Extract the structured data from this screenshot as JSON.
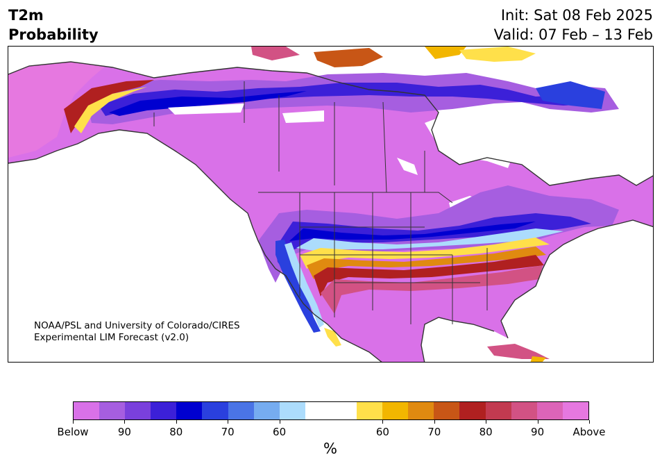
{
  "header": {
    "title_line1": "T2m",
    "title_line2": "Probability",
    "init": "Init: Sat 08 Feb 2025",
    "valid": "Valid: 07 Feb – 13 Feb"
  },
  "credit": {
    "line1": "NOAA/PSL and University of Colorado/CIRES",
    "line2": "Experimental LIM Forecast (v2.0)"
  },
  "colorbar": {
    "colors": [
      "#d971e8",
      "#a65ee0",
      "#7a40dc",
      "#3c20d8",
      "#0000d0",
      "#2a40de",
      "#4a74e6",
      "#76acf0",
      "#acdcfc",
      "#ffffff",
      "#ffe04a",
      "#f2b600",
      "#e08a10",
      "#c85616",
      "#b02020",
      "#c23a50",
      "#d25284",
      "#dc64b8",
      "#e678e0"
    ],
    "tick_labels": [
      "Below",
      "90",
      "80",
      "70",
      "60",
      "60",
      "70",
      "80",
      "90",
      "Above"
    ],
    "unit": "%"
  },
  "map": {
    "legend_colors": {
      "above": "#e678e0",
      "below": "#d971e8",
      "blue_deep": "#0000d0",
      "red_deep": "#b02020"
    }
  }
}
